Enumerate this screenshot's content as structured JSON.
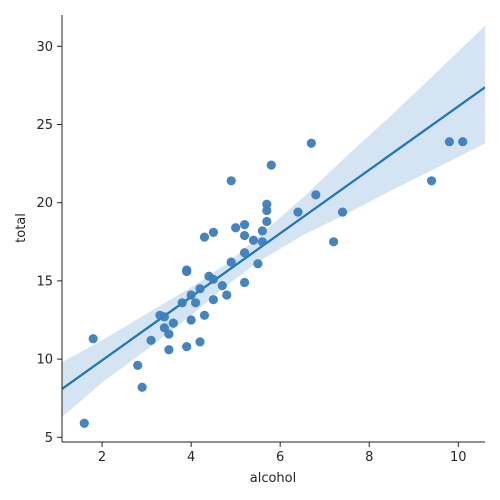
{
  "chart_data": {
    "type": "scatter",
    "title": "",
    "xlabel": "alcohol",
    "ylabel": "total",
    "xlim": [
      1.1,
      10.6
    ],
    "ylim": [
      4.7,
      32.0
    ],
    "xticks": [
      2,
      4,
      6,
      8,
      10
    ],
    "yticks": [
      5,
      10,
      15,
      20,
      25,
      30
    ],
    "grid": false,
    "colors": {
      "points": "#3b7dba",
      "line": "#1f77b4",
      "band": "#c6dbef"
    },
    "points": [
      {
        "x": 1.6,
        "y": 5.9
      },
      {
        "x": 1.8,
        "y": 11.3
      },
      {
        "x": 2.8,
        "y": 9.6
      },
      {
        "x": 2.9,
        "y": 8.2
      },
      {
        "x": 3.1,
        "y": 11.2
      },
      {
        "x": 3.3,
        "y": 12.8
      },
      {
        "x": 3.4,
        "y": 12.0
      },
      {
        "x": 3.4,
        "y": 12.7
      },
      {
        "x": 3.5,
        "y": 11.6
      },
      {
        "x": 3.5,
        "y": 10.6
      },
      {
        "x": 3.6,
        "y": 12.3
      },
      {
        "x": 3.8,
        "y": 13.6
      },
      {
        "x": 3.9,
        "y": 10.8
      },
      {
        "x": 3.9,
        "y": 15.6
      },
      {
        "x": 3.9,
        "y": 15.7
      },
      {
        "x": 4.0,
        "y": 14.1
      },
      {
        "x": 4.0,
        "y": 12.5
      },
      {
        "x": 4.1,
        "y": 13.6
      },
      {
        "x": 4.2,
        "y": 14.5
      },
      {
        "x": 4.2,
        "y": 11.1
      },
      {
        "x": 4.3,
        "y": 17.8
      },
      {
        "x": 4.3,
        "y": 12.8
      },
      {
        "x": 4.4,
        "y": 15.3
      },
      {
        "x": 4.5,
        "y": 15.1
      },
      {
        "x": 4.5,
        "y": 18.1
      },
      {
        "x": 4.5,
        "y": 13.8
      },
      {
        "x": 4.7,
        "y": 14.7
      },
      {
        "x": 4.8,
        "y": 14.1
      },
      {
        "x": 4.9,
        "y": 16.2
      },
      {
        "x": 4.9,
        "y": 21.4
      },
      {
        "x": 5.0,
        "y": 18.4
      },
      {
        "x": 5.2,
        "y": 18.6
      },
      {
        "x": 5.2,
        "y": 17.9
      },
      {
        "x": 5.2,
        "y": 16.8
      },
      {
        "x": 5.2,
        "y": 14.9
      },
      {
        "x": 5.4,
        "y": 17.6
      },
      {
        "x": 5.5,
        "y": 16.1
      },
      {
        "x": 5.6,
        "y": 17.5
      },
      {
        "x": 5.6,
        "y": 18.2
      },
      {
        "x": 5.7,
        "y": 18.8
      },
      {
        "x": 5.7,
        "y": 19.5
      },
      {
        "x": 5.7,
        "y": 19.9
      },
      {
        "x": 5.8,
        "y": 22.4
      },
      {
        "x": 6.4,
        "y": 19.4
      },
      {
        "x": 6.7,
        "y": 23.8
      },
      {
        "x": 6.8,
        "y": 20.5
      },
      {
        "x": 7.2,
        "y": 17.5
      },
      {
        "x": 7.4,
        "y": 19.4
      },
      {
        "x": 9.4,
        "y": 21.4
      },
      {
        "x": 9.8,
        "y": 23.9
      },
      {
        "x": 10.1,
        "y": 23.9
      }
    ],
    "regression": {
      "slope": 2.03,
      "intercept": 5.86
    },
    "confidence_band": [
      {
        "x": 1.1,
        "lower": 6.3,
        "upper": 9.8
      },
      {
        "x": 2.0,
        "lower": 8.5,
        "upper": 11.2
      },
      {
        "x": 3.0,
        "lower": 10.6,
        "upper": 12.9
      },
      {
        "x": 4.0,
        "lower": 12.8,
        "upper": 14.6
      },
      {
        "x": 4.8,
        "lower": 14.7,
        "upper": 16.1
      },
      {
        "x": 5.5,
        "lower": 16.2,
        "upper": 17.8
      },
      {
        "x": 6.5,
        "lower": 17.9,
        "upper": 20.3
      },
      {
        "x": 7.5,
        "lower": 19.3,
        "upper": 23.0
      },
      {
        "x": 8.5,
        "lower": 20.8,
        "upper": 25.6
      },
      {
        "x": 9.5,
        "lower": 22.2,
        "upper": 28.3
      },
      {
        "x": 10.6,
        "lower": 23.8,
        "upper": 31.3
      }
    ]
  }
}
